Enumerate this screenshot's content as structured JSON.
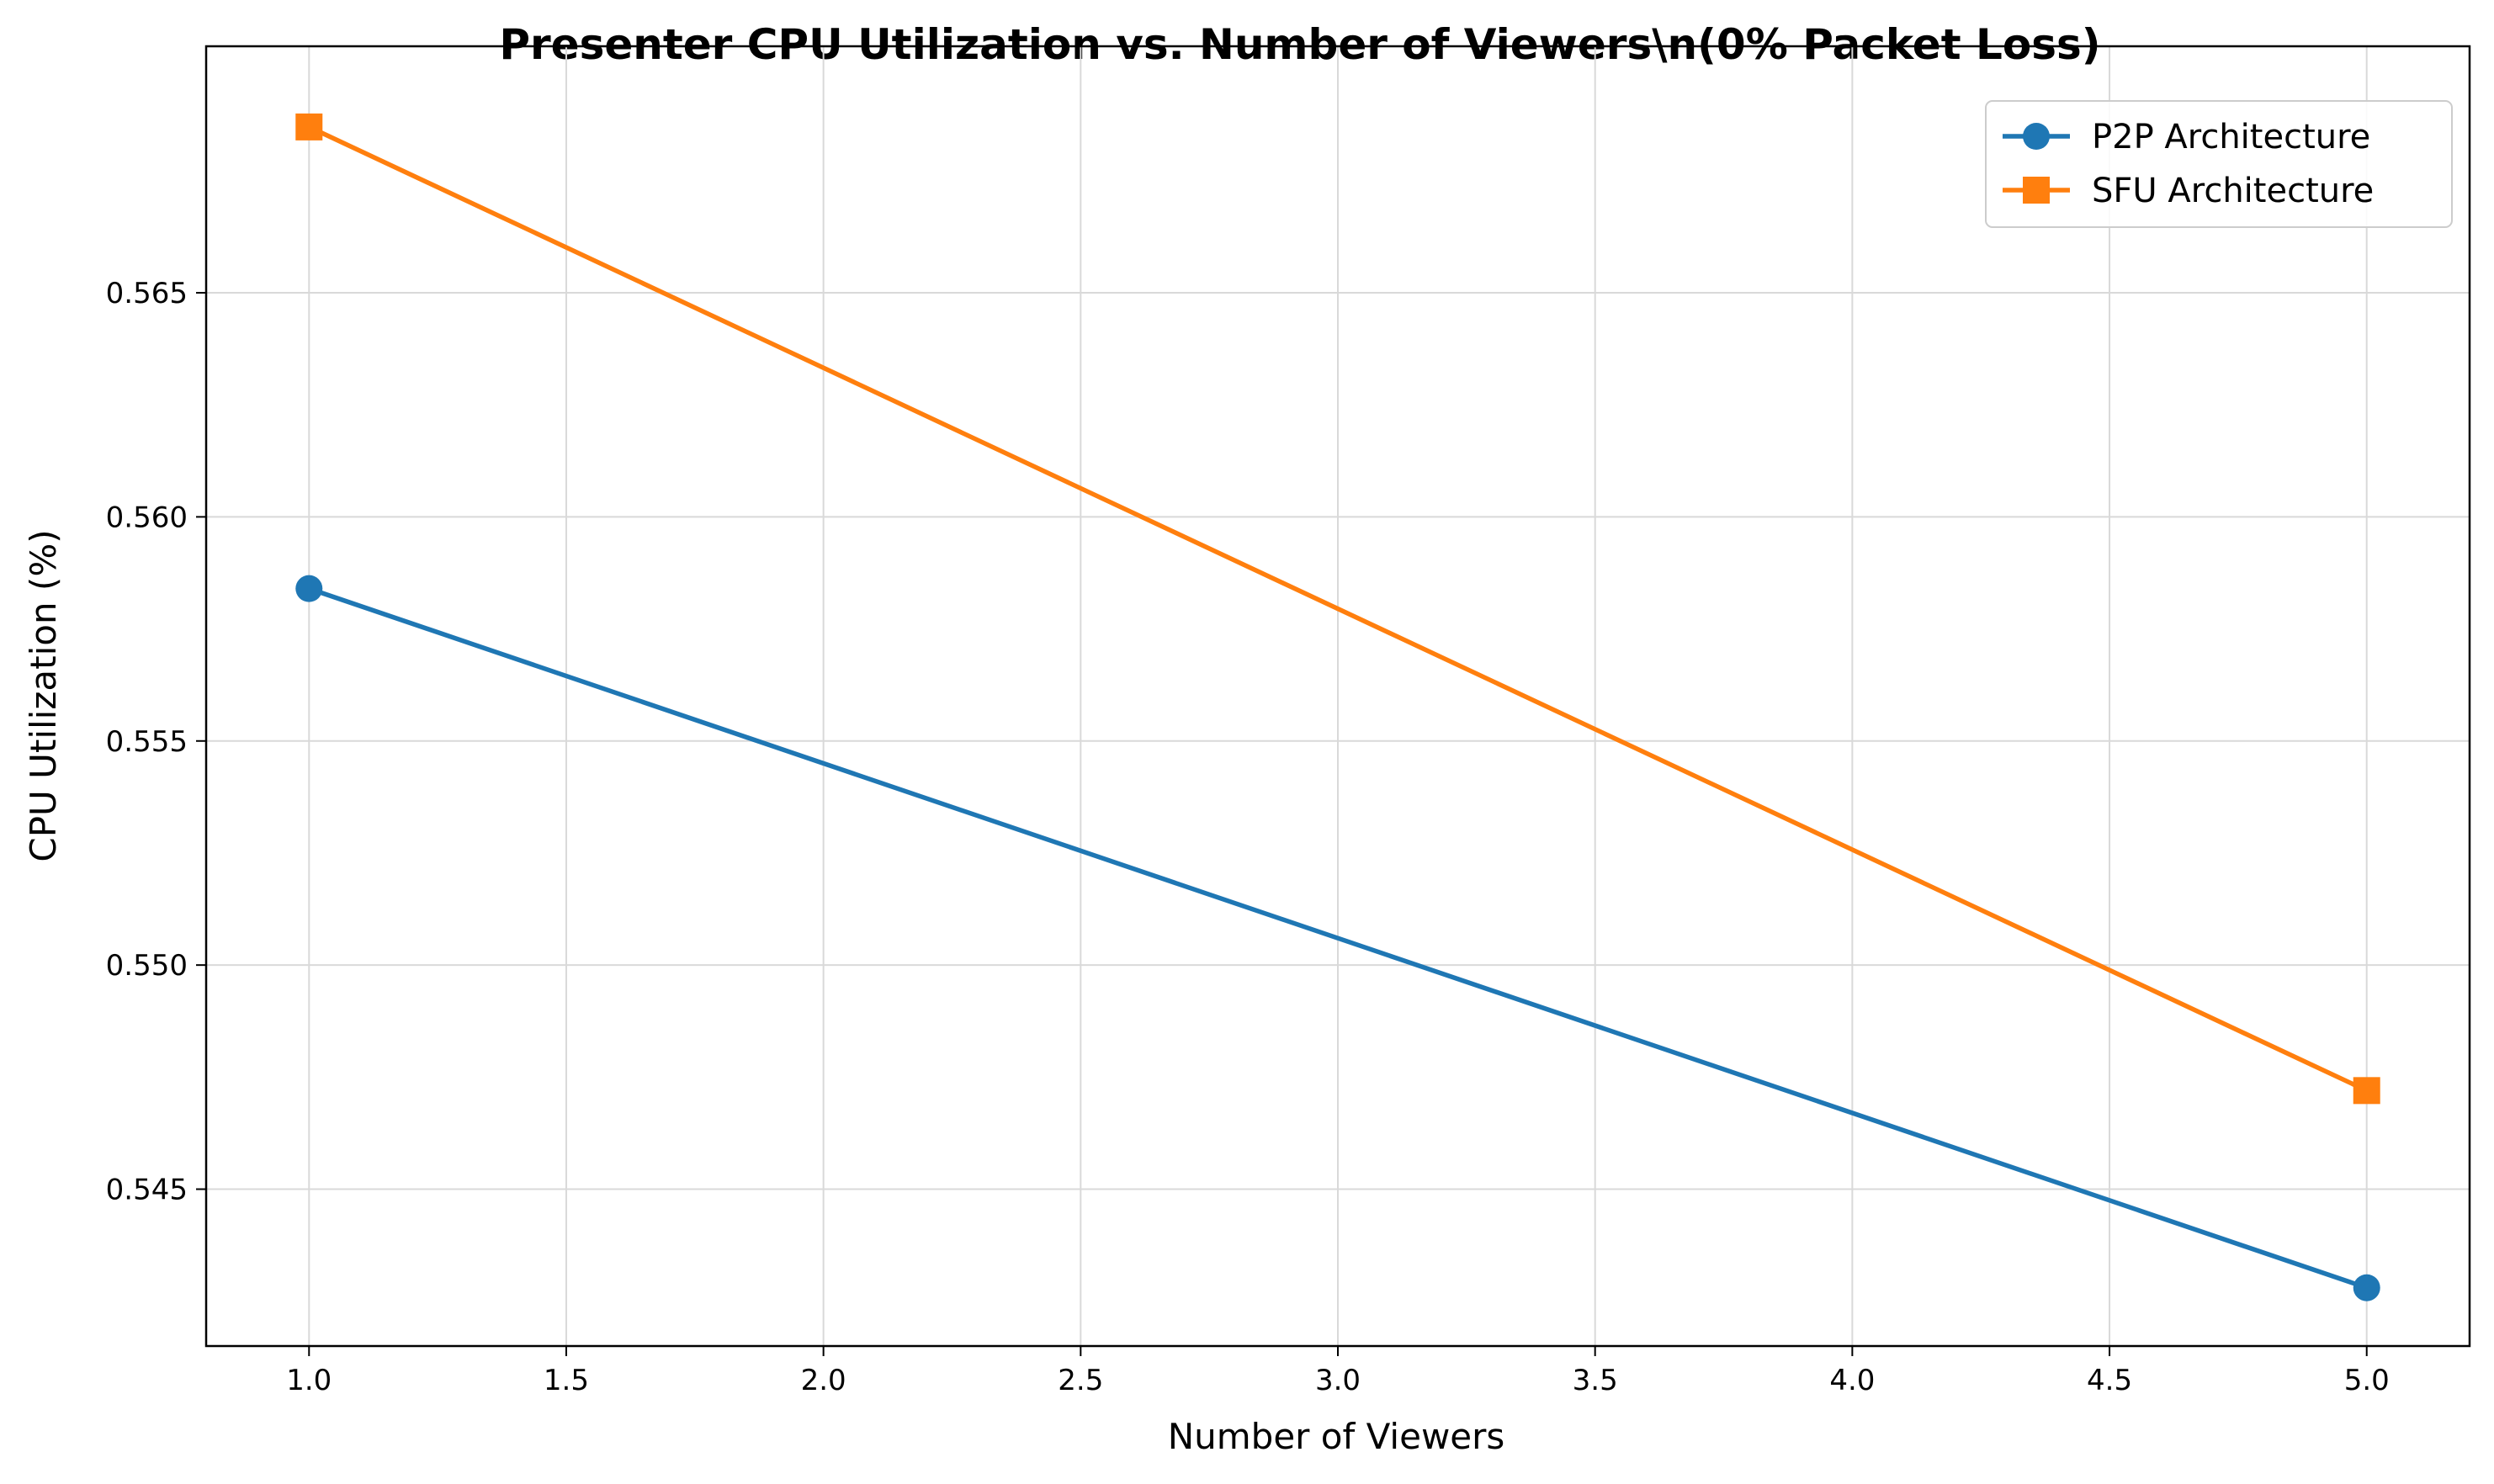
{
  "chart_data": {
    "type": "line",
    "title": "Presenter CPU Utilization vs. Number of Viewers\\n(0% Packet Loss)",
    "xlabel": "Number of Viewers",
    "ylabel": "CPU Utilization (%)",
    "xlim": [
      0.8,
      5.2
    ],
    "ylim": [
      0.5415,
      0.5705
    ],
    "x_ticks": [
      1.0,
      1.5,
      2.0,
      2.5,
      3.0,
      3.5,
      4.0,
      4.5,
      5.0
    ],
    "x_tick_labels": [
      "1.0",
      "1.5",
      "2.0",
      "2.5",
      "3.0",
      "3.5",
      "4.0",
      "4.5",
      "5.0"
    ],
    "y_ticks": [
      0.545,
      0.55,
      0.555,
      0.56,
      0.565
    ],
    "y_tick_labels": [
      "0.545",
      "0.550",
      "0.555",
      "0.560",
      "0.565"
    ],
    "grid": true,
    "legend_position": "top-right",
    "series": [
      {
        "name": "P2P Architecture",
        "color": "#1f77b4",
        "marker": "circle",
        "x": [
          1,
          5
        ],
        "y": [
          0.5584,
          0.5428
        ]
      },
      {
        "name": "SFU Architecture",
        "color": "#ff7f0e",
        "marker": "square",
        "x": [
          1,
          5
        ],
        "y": [
          0.5687,
          0.5472
        ]
      }
    ]
  }
}
